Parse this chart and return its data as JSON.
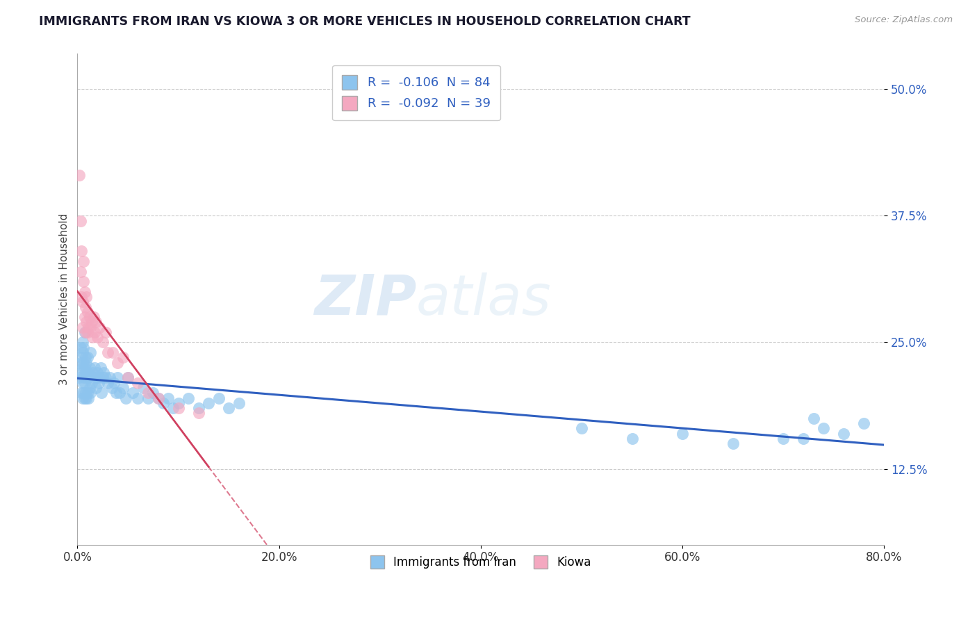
{
  "title": "IMMIGRANTS FROM IRAN VS KIOWA 3 OR MORE VEHICLES IN HOUSEHOLD CORRELATION CHART",
  "source_text": "Source: ZipAtlas.com",
  "ylabel": "3 or more Vehicles in Household",
  "x_series1_label": "Immigrants from Iran",
  "x_series2_label": "Kiowa",
  "R1": -0.106,
  "N1": 84,
  "R2": -0.092,
  "N2": 39,
  "xlim": [
    0.0,
    0.8
  ],
  "ylim": [
    0.05,
    0.535
  ],
  "xticks": [
    0.0,
    0.2,
    0.4,
    0.6,
    0.8
  ],
  "yticks": [
    0.125,
    0.25,
    0.375,
    0.5
  ],
  "ytick_labels": [
    "12.5%",
    "25.0%",
    "37.5%",
    "50.0%"
  ],
  "xtick_labels": [
    "0.0%",
    "20.0%",
    "40.0%",
    "60.0%",
    "80.0%"
  ],
  "color1": "#8DC4EE",
  "color2": "#F4A8C0",
  "trend_color1": "#3060C0",
  "trend_color2": "#D04060",
  "watermark_zip": "ZIP",
  "watermark_atlas": "atlas",
  "background_color": "#FFFFFF",
  "grid_color": "#CCCCCC",
  "scatter1_x": [
    0.002,
    0.003,
    0.003,
    0.004,
    0.004,
    0.004,
    0.005,
    0.005,
    0.005,
    0.005,
    0.005,
    0.006,
    0.006,
    0.006,
    0.006,
    0.007,
    0.007,
    0.007,
    0.007,
    0.008,
    0.008,
    0.008,
    0.009,
    0.009,
    0.009,
    0.01,
    0.01,
    0.01,
    0.011,
    0.011,
    0.012,
    0.012,
    0.013,
    0.013,
    0.014,
    0.015,
    0.016,
    0.017,
    0.018,
    0.019,
    0.02,
    0.021,
    0.022,
    0.023,
    0.024,
    0.025,
    0.026,
    0.028,
    0.03,
    0.032,
    0.034,
    0.036,
    0.038,
    0.04,
    0.042,
    0.045,
    0.048,
    0.05,
    0.055,
    0.06,
    0.065,
    0.07,
    0.075,
    0.08,
    0.085,
    0.09,
    0.095,
    0.1,
    0.11,
    0.12,
    0.13,
    0.14,
    0.15,
    0.16,
    0.5,
    0.55,
    0.6,
    0.65,
    0.7,
    0.72,
    0.73,
    0.74,
    0.76,
    0.78
  ],
  "scatter1_y": [
    0.215,
    0.23,
    0.245,
    0.2,
    0.22,
    0.235,
    0.195,
    0.21,
    0.225,
    0.24,
    0.25,
    0.2,
    0.215,
    0.23,
    0.245,
    0.195,
    0.21,
    0.225,
    0.26,
    0.2,
    0.22,
    0.235,
    0.195,
    0.215,
    0.23,
    0.2,
    0.22,
    0.235,
    0.195,
    0.215,
    0.205,
    0.225,
    0.2,
    0.24,
    0.21,
    0.22,
    0.215,
    0.225,
    0.205,
    0.215,
    0.22,
    0.21,
    0.215,
    0.225,
    0.2,
    0.215,
    0.22,
    0.215,
    0.21,
    0.215,
    0.205,
    0.21,
    0.2,
    0.215,
    0.2,
    0.205,
    0.195,
    0.215,
    0.2,
    0.195,
    0.205,
    0.195,
    0.2,
    0.195,
    0.19,
    0.195,
    0.185,
    0.19,
    0.195,
    0.185,
    0.19,
    0.195,
    0.185,
    0.19,
    0.165,
    0.155,
    0.16,
    0.15,
    0.155,
    0.155,
    0.175,
    0.165,
    0.16,
    0.17
  ],
  "scatter2_x": [
    0.002,
    0.003,
    0.003,
    0.004,
    0.004,
    0.005,
    0.005,
    0.006,
    0.006,
    0.007,
    0.007,
    0.008,
    0.008,
    0.009,
    0.009,
    0.01,
    0.01,
    0.011,
    0.012,
    0.013,
    0.014,
    0.015,
    0.016,
    0.017,
    0.018,
    0.02,
    0.022,
    0.025,
    0.028,
    0.03,
    0.035,
    0.04,
    0.045,
    0.05,
    0.06,
    0.07,
    0.08,
    0.1,
    0.12
  ],
  "scatter2_y": [
    0.415,
    0.37,
    0.32,
    0.295,
    0.34,
    0.265,
    0.29,
    0.31,
    0.33,
    0.275,
    0.3,
    0.26,
    0.285,
    0.27,
    0.295,
    0.26,
    0.28,
    0.265,
    0.275,
    0.265,
    0.27,
    0.255,
    0.275,
    0.26,
    0.27,
    0.255,
    0.265,
    0.25,
    0.26,
    0.24,
    0.24,
    0.23,
    0.235,
    0.215,
    0.21,
    0.2,
    0.195,
    0.185,
    0.18
  ]
}
